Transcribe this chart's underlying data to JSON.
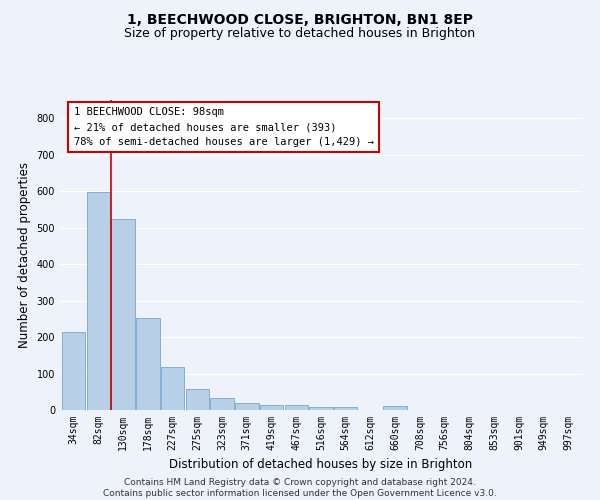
{
  "title1": "1, BEECHWOOD CLOSE, BRIGHTON, BN1 8EP",
  "title2": "Size of property relative to detached houses in Brighton",
  "xlabel": "Distribution of detached houses by size in Brighton",
  "ylabel": "Number of detached properties",
  "categories": [
    "34sqm",
    "82sqm",
    "130sqm",
    "178sqm",
    "227sqm",
    "275sqm",
    "323sqm",
    "371sqm",
    "419sqm",
    "467sqm",
    "516sqm",
    "564sqm",
    "612sqm",
    "660sqm",
    "708sqm",
    "756sqm",
    "804sqm",
    "853sqm",
    "901sqm",
    "949sqm",
    "997sqm"
  ],
  "values": [
    213,
    599,
    524,
    252,
    117,
    57,
    33,
    18,
    15,
    14,
    9,
    8,
    0,
    10,
    0,
    0,
    0,
    0,
    0,
    0,
    0
  ],
  "bar_color": "#b8cfe8",
  "bar_edge_color": "#6899c4",
  "vline_color": "#cc0000",
  "vline_x": 1.5,
  "annotation_text": "1 BEECHWOOD CLOSE: 98sqm\n← 21% of detached houses are smaller (393)\n78% of semi-detached houses are larger (1,429) →",
  "annotation_box_color": "#ffffff",
  "annotation_box_edge": "#cc0000",
  "footer_text": "Contains HM Land Registry data © Crown copyright and database right 2024.\nContains public sector information licensed under the Open Government Licence v3.0.",
  "ylim": [
    0,
    850
  ],
  "yticks": [
    0,
    100,
    200,
    300,
    400,
    500,
    600,
    700,
    800
  ],
  "background_color": "#eef2fb",
  "grid_color": "#ffffff",
  "title_fontsize": 10,
  "subtitle_fontsize": 9,
  "axis_label_fontsize": 8.5,
  "tick_fontsize": 7,
  "annotation_fontsize": 7.5,
  "footer_fontsize": 6.5
}
